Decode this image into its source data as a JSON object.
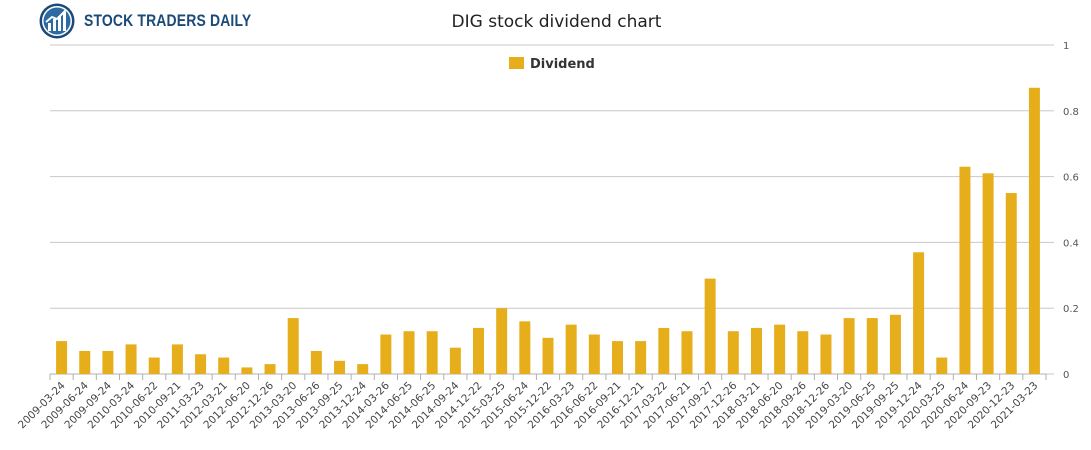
{
  "brand": {
    "name": "STOCK TRADERS DAILY",
    "logo_icon": "bull-chart-icon",
    "color": "#1c4a78"
  },
  "chart_data": {
    "type": "bar",
    "title": "DIG stock dividend chart",
    "legend": {
      "placement": "top-center",
      "entries": [
        "Dividend"
      ]
    },
    "xlabel": "",
    "ylabel": "",
    "ylim": [
      0,
      1
    ],
    "yticks": [
      0,
      0.2,
      0.4,
      0.6,
      0.8,
      1
    ],
    "ytick_labels": [
      "0",
      "0.2",
      "0.4",
      "0.6",
      "0.8",
      "1"
    ],
    "grid": true,
    "bar_color": "#e6ae1a",
    "categories": [
      "2009-03-24",
      "2009-06-24",
      "2009-09-24",
      "2010-03-24",
      "2010-06-22",
      "2010-09-21",
      "2011-03-23",
      "2012-03-21",
      "2012-06-20",
      "2012-12-26",
      "2013-03-20",
      "2013-06-26",
      "2013-09-25",
      "2013-12-24",
      "2014-03-26",
      "2014-06-25",
      "2014-06-25",
      "2014-09-24",
      "2014-12-22",
      "2015-03-25",
      "2015-06-24",
      "2015-12-22",
      "2016-03-23",
      "2016-06-22",
      "2016-09-21",
      "2016-12-21",
      "2017-03-22",
      "2017-06-21",
      "2017-09-27",
      "2017-12-26",
      "2018-03-21",
      "2018-06-20",
      "2018-09-26",
      "2018-12-26",
      "2019-03-20",
      "2019-06-25",
      "2019-09-25",
      "2019-12-24",
      "2020-03-25",
      "2020-06-24",
      "2020-09-23",
      "2020-12-23",
      "2021-03-23"
    ],
    "series": [
      {
        "name": "Dividend",
        "values": [
          0.1,
          0.07,
          0.07,
          0.09,
          0.05,
          0.09,
          0.06,
          0.05,
          0.02,
          0.03,
          0.17,
          0.07,
          0.04,
          0.03,
          0.12,
          0.13,
          0.13,
          0.08,
          0.14,
          0.2,
          0.16,
          0.11,
          0.15,
          0.12,
          0.1,
          0.1,
          0.14,
          0.13,
          0.29,
          0.13,
          0.14,
          0.15,
          0.13,
          0.12,
          0.17,
          0.17,
          0.18,
          0.37,
          0.05,
          0.63,
          0.61,
          0.55,
          0.87
        ]
      }
    ]
  }
}
